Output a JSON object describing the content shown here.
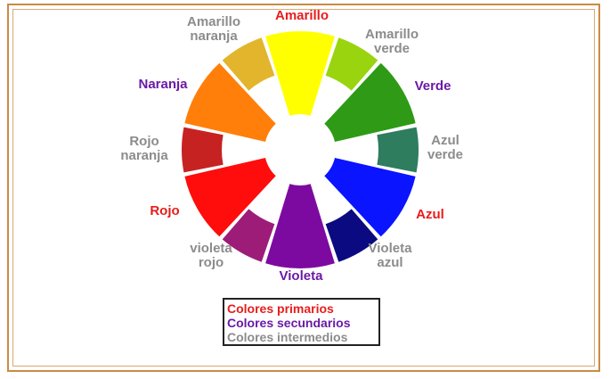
{
  "colors": {
    "primary": "#e81c1c",
    "secondary": "#6a1aa6",
    "intermediate": "#8c8c8c",
    "frame": "#c98b45"
  },
  "wheel": {
    "segments": [
      {
        "id": "amarillo",
        "kind": "primary",
        "fill": "#ffff00",
        "label_lines": [
          "Amarillo"
        ]
      },
      {
        "id": "amarillo-verde",
        "kind": "intermediate",
        "fill": "#99d40f",
        "label_lines": [
          "Amarillo",
          "verde"
        ]
      },
      {
        "id": "verde",
        "kind": "secondary",
        "fill": "#2e9a16",
        "label_lines": [
          "Verde"
        ]
      },
      {
        "id": "azul-verde",
        "kind": "intermediate",
        "fill": "#2d7d5e",
        "label_lines": [
          "Azul",
          "verde"
        ]
      },
      {
        "id": "azul",
        "kind": "primary",
        "fill": "#0a14ff",
        "label_lines": [
          "Azul"
        ]
      },
      {
        "id": "violeta-azul",
        "kind": "intermediate",
        "fill": "#0c0a80",
        "label_lines": [
          "Violeta",
          "azul"
        ]
      },
      {
        "id": "violeta",
        "kind": "secondary",
        "fill": "#7d0aa0",
        "label_lines": [
          "Violeta"
        ]
      },
      {
        "id": "violeta-rojo",
        "kind": "intermediate",
        "fill": "#9c1c78",
        "label_lines": [
          "violeta",
          "rojo"
        ]
      },
      {
        "id": "rojo",
        "kind": "primary",
        "fill": "#ff0c0c",
        "label_lines": [
          "Rojo"
        ]
      },
      {
        "id": "rojo-naranja",
        "kind": "intermediate",
        "fill": "#c72222",
        "label_lines": [
          "Rojo",
          "naranja"
        ]
      },
      {
        "id": "naranja",
        "kind": "secondary",
        "fill": "#ff7f0a",
        "label_lines": [
          "Naranja"
        ]
      },
      {
        "id": "amarillo-naranja",
        "kind": "intermediate",
        "fill": "#e3b52c",
        "label_lines": [
          "Amarillo",
          "naranja"
        ]
      }
    ]
  },
  "legend": {
    "primary": "Colores primarios",
    "secondary": "Colores secundarios",
    "intermediate": "Colores intermedios"
  }
}
